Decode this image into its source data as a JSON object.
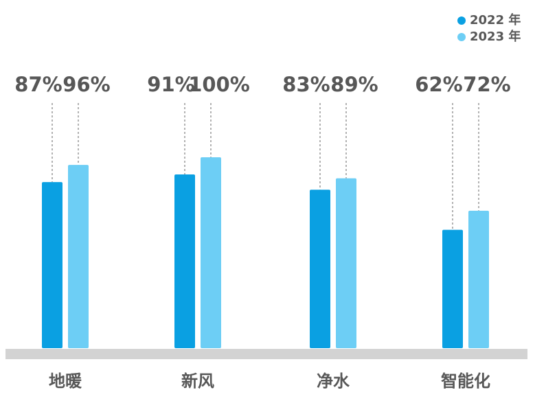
{
  "chart_data": {
    "type": "bar",
    "categories": [
      "地暖",
      "新风",
      "净水",
      "智能化"
    ],
    "series": [
      {
        "name": "2022 年",
        "color": "#0aa0e2",
        "values": [
          87,
          91,
          83,
          62
        ],
        "value_labels": [
          "87%",
          "91%",
          "83%",
          "62%"
        ]
      },
      {
        "name": "2023 年",
        "color": "#6dcef5",
        "values": [
          96,
          100,
          89,
          72
        ],
        "value_labels": [
          "96%",
          "100%",
          "89%",
          "72%"
        ]
      }
    ]
  }
}
